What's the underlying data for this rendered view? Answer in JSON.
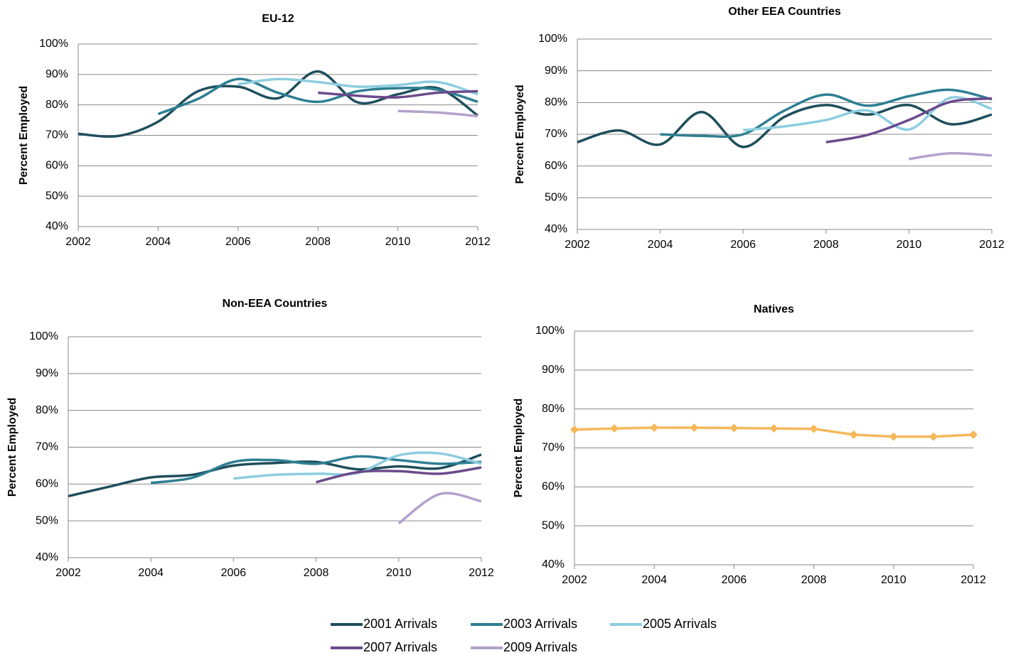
{
  "chart_data": [
    {
      "type": "line",
      "title": "EU-12",
      "ylabel": "Percent Employed",
      "smooth": true,
      "x": [
        2002,
        2003,
        2004,
        2005,
        2006,
        2007,
        2008,
        2009,
        2010,
        2011,
        2012
      ],
      "xlim": [
        2002,
        2012
      ],
      "xticks": [
        2002,
        2004,
        2006,
        2008,
        2010,
        2012
      ],
      "ylim": [
        40,
        100
      ],
      "yticks": [
        {
          "value": 40,
          "label": "40%"
        },
        {
          "value": 50,
          "label": "50%"
        },
        {
          "value": 60,
          "label": "60%"
        },
        {
          "value": 70,
          "label": "70%"
        },
        {
          "value": 80,
          "label": "80%"
        },
        {
          "value": 90,
          "label": "90%"
        },
        {
          "value": 100,
          "label": "100%"
        }
      ],
      "grid": true,
      "series": [
        {
          "name": "2001 Arrivals",
          "color": "#1f4e5c",
          "values": [
            70.5,
            69.8,
            74.5,
            84.5,
            86,
            82.2,
            91,
            80.8,
            83.5,
            85.5,
            76.5
          ]
        },
        {
          "name": "2003 Arrivals",
          "color": "#2e7f92",
          "values": [
            null,
            null,
            77,
            82,
            88.5,
            84,
            81,
            84.5,
            85.5,
            85,
            81
          ]
        },
        {
          "name": "2005 Arrivals",
          "color": "#8ccde0",
          "values": [
            null,
            null,
            null,
            null,
            86.8,
            88.5,
            87.5,
            86,
            86.5,
            87.5,
            83.5
          ]
        },
        {
          "name": "2007 Arrivals",
          "color": "#6b4a8c",
          "values": [
            null,
            null,
            null,
            null,
            null,
            null,
            84,
            83,
            82.5,
            84,
            84.5
          ]
        },
        {
          "name": "2009 Arrivals",
          "color": "#b3a2cc",
          "values": [
            null,
            null,
            null,
            null,
            null,
            null,
            null,
            null,
            78,
            77.5,
            76.3
          ]
        }
      ]
    },
    {
      "type": "line",
      "title": "Other EEA Countries",
      "ylabel": "Percent Employed",
      "smooth": true,
      "x": [
        2002,
        2003,
        2004,
        2005,
        2006,
        2007,
        2008,
        2009,
        2010,
        2011,
        2012
      ],
      "xlim": [
        2002,
        2012
      ],
      "xticks": [
        2002,
        2004,
        2006,
        2008,
        2010,
        2012
      ],
      "ylim": [
        40,
        100
      ],
      "yticks": [
        {
          "value": 40,
          "label": "40%"
        },
        {
          "value": 50,
          "label": "50%"
        },
        {
          "value": 60,
          "label": "60%"
        },
        {
          "value": 70,
          "label": "70%"
        },
        {
          "value": 80,
          "label": "80%"
        },
        {
          "value": 90,
          "label": "90%"
        },
        {
          "value": 100,
          "label": "100%"
        }
      ],
      "grid": true,
      "series": [
        {
          "name": "2001 Arrivals",
          "color": "#1f4e5c",
          "values": [
            67.5,
            71.2,
            66.8,
            77,
            66,
            75.5,
            79.2,
            76.2,
            79.2,
            73.2,
            76.2
          ]
        },
        {
          "name": "2003 Arrivals",
          "color": "#2e7f92",
          "values": [
            null,
            null,
            70,
            69.5,
            70,
            77.5,
            82.5,
            79,
            82,
            84,
            81
          ]
        },
        {
          "name": "2005 Arrivals",
          "color": "#8ccde0",
          "values": [
            null,
            null,
            null,
            null,
            71.3,
            72.5,
            74.5,
            77.5,
            71.5,
            81.5,
            78
          ]
        },
        {
          "name": "2007 Arrivals",
          "color": "#6b4a8c",
          "values": [
            null,
            null,
            null,
            null,
            null,
            null,
            67.5,
            69.8,
            74.5,
            80.2,
            81.3
          ]
        },
        {
          "name": "2009 Arrivals",
          "color": "#b3a2cc",
          "values": [
            null,
            null,
            null,
            null,
            null,
            null,
            null,
            null,
            62.2,
            64,
            63.3
          ]
        }
      ]
    },
    {
      "type": "line",
      "title": "Non-EEA Countries",
      "ylabel": "Percent Employed",
      "smooth": true,
      "x": [
        2002,
        2003,
        2004,
        2005,
        2006,
        2007,
        2008,
        2009,
        2010,
        2011,
        2012
      ],
      "xlim": [
        2002,
        2012
      ],
      "xticks": [
        2002,
        2004,
        2006,
        2008,
        2010,
        2012
      ],
      "ylim": [
        40,
        100
      ],
      "yticks": [
        {
          "value": 40,
          "label": "40%"
        },
        {
          "value": 50,
          "label": "50%"
        },
        {
          "value": 60,
          "label": "60%"
        },
        {
          "value": 70,
          "label": "70%"
        },
        {
          "value": 80,
          "label": "80%"
        },
        {
          "value": 90,
          "label": "90%"
        },
        {
          "value": 100,
          "label": "100%"
        }
      ],
      "grid": true,
      "series": [
        {
          "name": "2001 Arrivals",
          "color": "#1f4e5c",
          "values": [
            56.7,
            59.3,
            61.8,
            62.5,
            65,
            65.7,
            66,
            64,
            64.8,
            64.3,
            68
          ]
        },
        {
          "name": "2003 Arrivals",
          "color": "#2e7f92",
          "values": [
            null,
            null,
            60.3,
            61.7,
            66,
            66.5,
            65.5,
            67.5,
            66.5,
            65.5,
            66
          ]
        },
        {
          "name": "2005 Arrivals",
          "color": "#8ccde0",
          "values": [
            null,
            null,
            null,
            null,
            61.5,
            62.5,
            62.8,
            63,
            67.8,
            68.3,
            65.5
          ]
        },
        {
          "name": "2007 Arrivals",
          "color": "#6b4a8c",
          "values": [
            null,
            null,
            null,
            null,
            null,
            null,
            60.5,
            63.2,
            63.5,
            62.8,
            64.5
          ]
        },
        {
          "name": "2009 Arrivals",
          "color": "#b3a2cc",
          "values": [
            null,
            null,
            null,
            null,
            null,
            null,
            null,
            null,
            49.3,
            57.3,
            55.3
          ]
        }
      ]
    },
    {
      "type": "line",
      "title": "Natives",
      "ylabel": "Percent Employed",
      "smooth": false,
      "marker": "diamond",
      "x": [
        2002,
        2003,
        2004,
        2005,
        2006,
        2007,
        2008,
        2009,
        2010,
        2011,
        2012
      ],
      "xlim": [
        2002,
        2012
      ],
      "xticks": [
        2002,
        2004,
        2006,
        2008,
        2010,
        2012
      ],
      "ylim": [
        40,
        100
      ],
      "yticks": [
        {
          "value": 40,
          "label": "40%"
        },
        {
          "value": 50,
          "label": "50%"
        },
        {
          "value": 60,
          "label": "60%"
        },
        {
          "value": 70,
          "label": "70%"
        },
        {
          "value": 80,
          "label": "80%"
        },
        {
          "value": 90,
          "label": "90%"
        },
        {
          "value": 100,
          "label": "100%"
        }
      ],
      "grid": true,
      "series": [
        {
          "color": "#f5b85a",
          "values": [
            74.7,
            75,
            75.2,
            75.2,
            75.1,
            75,
            74.9,
            73.4,
            72.9,
            72.9,
            73.4
          ]
        }
      ]
    }
  ]
}
